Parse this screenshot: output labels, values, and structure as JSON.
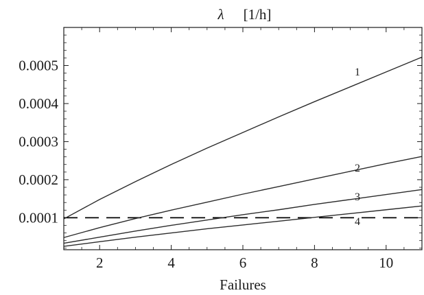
{
  "chart_data": {
    "type": "line",
    "title_symbol": "λ",
    "title_unit": "[1/h]",
    "xlabel": "Failures",
    "ylabel": "",
    "xlim": [
      1,
      11
    ],
    "ylim": [
      1.6e-05,
      0.0006
    ],
    "xticks": [
      2,
      4,
      6,
      8,
      10
    ],
    "xtick_labels": [
      "2",
      "4",
      "6",
      "8",
      "10"
    ],
    "yticks": [
      0.0001,
      0.0002,
      0.0003,
      0.0004,
      0.0005
    ],
    "ytick_labels": [
      "0.0001",
      "0.0002",
      "0.0003",
      "0.0004",
      "0.0005"
    ],
    "grid": false,
    "legend": "none",
    "series": [
      {
        "name": "1",
        "x": [
          1,
          2,
          3,
          4,
          5,
          6,
          7,
          8,
          9,
          10,
          11
        ],
        "y": [
          9.7e-05,
          0.000148,
          0.000195,
          0.00024,
          0.000283,
          0.000324,
          0.000365,
          0.000405,
          0.000444,
          0.000483,
          0.000522
        ],
        "label_at": [
          9.2,
          0.000485
        ],
        "color": "#2b2b2b"
      },
      {
        "name": "2",
        "x": [
          1,
          2,
          3,
          4,
          5,
          6,
          7,
          8,
          9,
          10,
          11
        ],
        "y": [
          4.8e-05,
          7.4e-05,
          9.8e-05,
          0.00012,
          0.000141,
          0.000162,
          0.000182,
          0.000202,
          0.000222,
          0.000242,
          0.000261
        ],
        "label_at": [
          9.2,
          0.000232
        ],
        "color": "#2b2b2b"
      },
      {
        "name": "3",
        "x": [
          1,
          2,
          3,
          4,
          5,
          6,
          7,
          8,
          9,
          10,
          11
        ],
        "y": [
          3.3e-05,
          4.9e-05,
          6.5e-05,
          8e-05,
          9.4e-05,
          0.000108,
          0.000121,
          0.000135,
          0.000148,
          0.000161,
          0.000174
        ],
        "label_at": [
          9.2,
          0.000157
        ],
        "color": "#2b2b2b"
      },
      {
        "name": "4",
        "x": [
          1,
          2,
          3,
          4,
          5,
          6,
          7,
          8,
          9,
          10,
          11
        ],
        "y": [
          2.5e-05,
          3.7e-05,
          4.9e-05,
          6e-05,
          7.1e-05,
          8.1e-05,
          9.1e-05,
          0.000101,
          0.000111,
          0.000121,
          0.000131
        ],
        "label_at": [
          9.2,
          9.2e-05
        ],
        "color": "#2b2b2b"
      }
    ],
    "reference_line": {
      "y": 0.0001,
      "style": "dashed",
      "color": "#000000"
    }
  }
}
